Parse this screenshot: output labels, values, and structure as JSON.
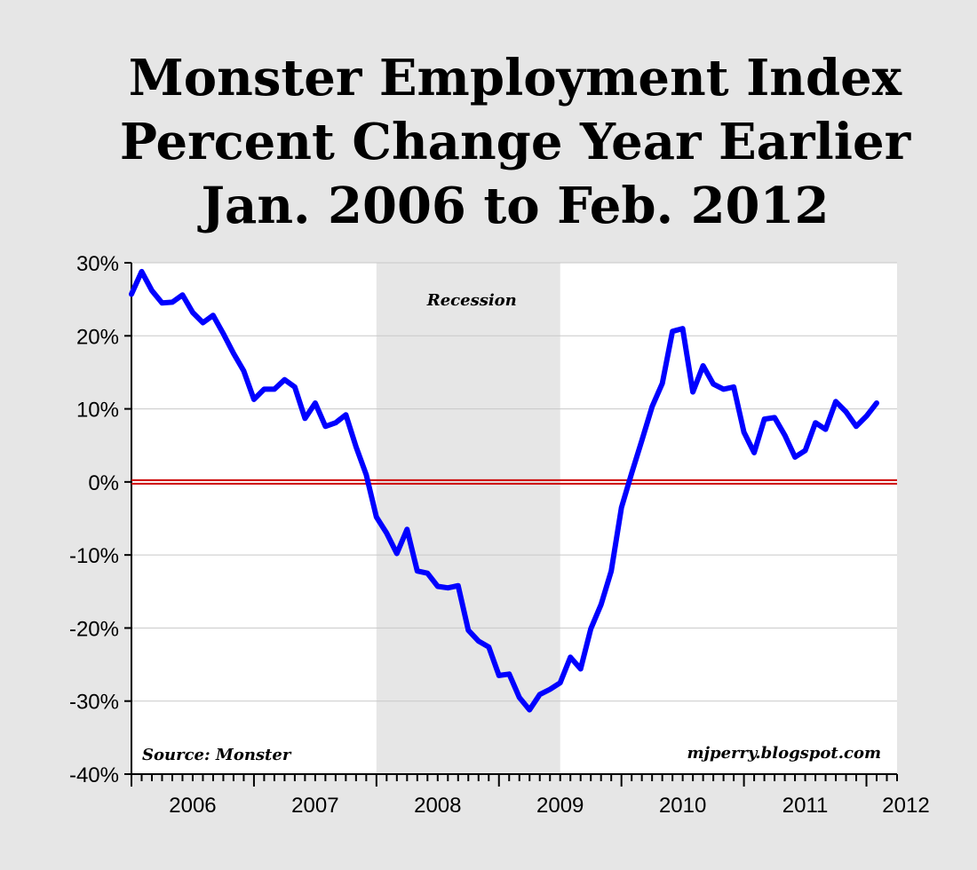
{
  "chart_data": {
    "type": "line",
    "title": "Monster Employment Index",
    "title_lines": [
      "Monster Employment Index",
      "Percent Change Year Earlier",
      "Jan. 2006 to Feb. 2012"
    ],
    "ylim": [
      -40,
      30
    ],
    "yticks": [
      "30%",
      "20%",
      "10%",
      "0%",
      "-10%",
      "-20%",
      "-30%",
      "-40%"
    ],
    "ytick_values": [
      30,
      20,
      10,
      0,
      -10,
      -20,
      -30,
      -40
    ],
    "xticks": [
      "2006",
      "2007",
      "2008",
      "2009",
      "2010",
      "2011",
      "2012"
    ],
    "grid": "horizontal",
    "series": [
      {
        "name": "",
        "color": "#0000ff",
        "x_start": "2006-01",
        "x_step": "month",
        "values": [
          25.7,
          28.8,
          26.2,
          24.5,
          24.6,
          25.6,
          23.2,
          21.8,
          22.8,
          20.3,
          17.6,
          15.2,
          11.3,
          12.7,
          12.7,
          14.0,
          13.0,
          8.7,
          10.8,
          7.6,
          8.1,
          9.2,
          4.8,
          1.0,
          -4.8,
          -7.0,
          -9.8,
          -6.5,
          -12.2,
          -12.5,
          -14.3,
          -14.5,
          -14.2,
          -20.3,
          -21.8,
          -22.6,
          -26.5,
          -26.3,
          -29.5,
          -31.2,
          -29.1,
          -28.4,
          -27.5,
          -24.0,
          -25.6,
          -20.1,
          -16.8,
          -12.2,
          -3.5,
          1.2,
          5.7,
          10.3,
          13.5,
          20.6,
          21.0,
          12.3,
          15.9,
          13.4,
          12.7,
          13.0,
          6.8,
          4.0,
          8.6,
          8.8,
          6.4,
          3.4,
          4.3,
          8.1,
          7.2,
          11.0,
          9.6,
          7.6,
          9.0,
          10.8
        ]
      }
    ],
    "recession_label": "Recession",
    "recession": {
      "start": "2008-01",
      "end": "2009-06"
    },
    "reference_line": {
      "y": 0,
      "color": "#cc0000"
    },
    "annotations": {
      "source": "Source: Monster",
      "credit": "mjperry.blogspot.com"
    },
    "colors": {
      "line": "#0000ff",
      "zero_line": "#cc0000",
      "plot_bg": "#ffffff",
      "recession_shade": "#e6e6e6",
      "grid": "#c8c8c8"
    }
  }
}
